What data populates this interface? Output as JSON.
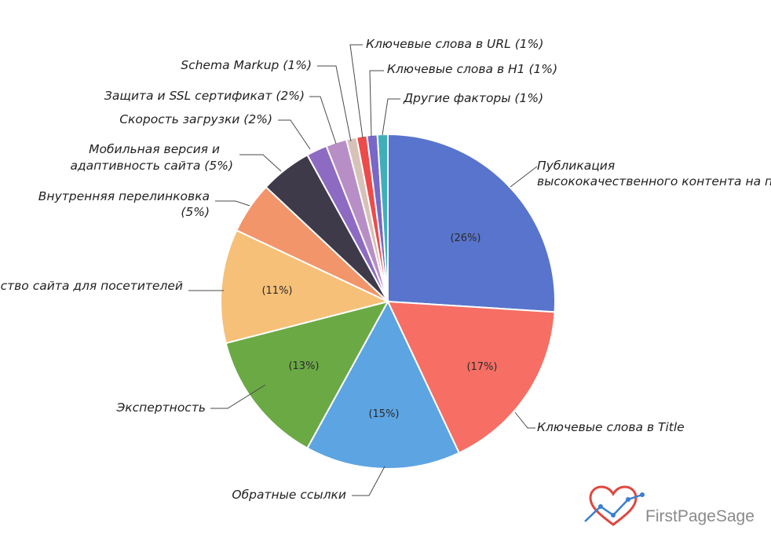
{
  "chart_data": {
    "type": "pie",
    "title": "",
    "slices": [
      {
        "label": "Публикация высококачественного контента на постоянной основе",
        "value": 26,
        "value_label": "(26%)",
        "color": "#5874CC"
      },
      {
        "label": "Ключевые слова в Title",
        "value": 17,
        "value_label": "(17%)",
        "color": "#F76E64"
      },
      {
        "label": "Обратные ссылки",
        "value": 15,
        "value_label": "(15%)",
        "color": "#5CA4E2"
      },
      {
        "label": "Экспертность",
        "value": 13,
        "value_label": "(13%)",
        "color": "#6BA945"
      },
      {
        "label": "Удобство сайта для посетителей",
        "value": 11,
        "value_label": "(11%)",
        "color": "#F6C078"
      },
      {
        "label": "Внутренняя перелинковка (5%)",
        "value": 5,
        "value_label": "",
        "color": "#F2956A"
      },
      {
        "label": "Мобильная версия и адаптивность сайта (5%)",
        "value": 5,
        "value_label": "",
        "color": "#3E3A4A"
      },
      {
        "label": "Скорость загрузки (2%)",
        "value": 2,
        "value_label": "",
        "color": "#8E6BC2"
      },
      {
        "label": "Защита и SSL сертификат (2%)",
        "value": 2,
        "value_label": "",
        "color": "#B88EC7"
      },
      {
        "label": "Schema Markup (1%)",
        "value": 1,
        "value_label": "",
        "color": "#D7C2B8"
      },
      {
        "label": "Ключевые слова в URL (1%)",
        "value": 1,
        "value_label": "",
        "color": "#EE4A4A"
      },
      {
        "label": "Ключевые слова в H1 (1%)",
        "value": 1,
        "value_label": "",
        "color": "#7868C8"
      },
      {
        "label": "Другие факторы (1%)",
        "value": 1,
        "value_label": "",
        "color": "#3FAFB8"
      }
    ]
  },
  "brand": {
    "name": "FirstPageSage",
    "icon": "heart-chart-logo",
    "heart_color": "#E0463E",
    "line_color": "#3A7FD0"
  }
}
